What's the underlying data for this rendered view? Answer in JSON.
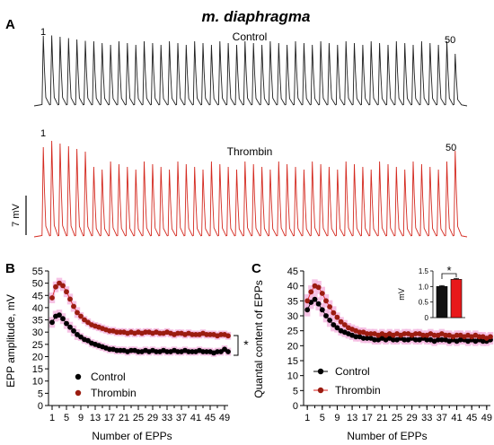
{
  "figure": {
    "title": "m. diaphragma",
    "panel_labels": {
      "a": "A",
      "b": "B",
      "c": "C"
    }
  },
  "colors": {
    "control": "#000000",
    "thrombin": "#d81f1f",
    "thrombin_marker": "#9b1c10",
    "error_shade": "#f5b8e0",
    "trace_control": "#202020",
    "trace_thrombin": "#d42a20",
    "bar_control": "#111111",
    "bar_thrombin": "#e8191b"
  },
  "chart_data": [
    {
      "type": "trace",
      "panel": "A",
      "series": [
        {
          "name": "Control",
          "first_label": "1",
          "last_label": "50",
          "n_pulses": 50
        },
        {
          "name": "Thrombin",
          "first_label": "1",
          "last_label": "50",
          "n_pulses": 50
        }
      ],
      "scale_bar": {
        "label": "7 mV"
      }
    },
    {
      "type": "scatter",
      "panel": "B",
      "xlabel": "Number of EPPs",
      "ylabel": "EPP amplitude, mV",
      "xlim": [
        0,
        50
      ],
      "ylim": [
        0,
        55
      ],
      "xticks": [
        1,
        5,
        9,
        13,
        17,
        21,
        25,
        29,
        33,
        37,
        41,
        45,
        49
      ],
      "yticks": [
        0,
        5,
        10,
        15,
        20,
        25,
        30,
        35,
        40,
        45,
        50,
        55
      ],
      "legend_position": "bottom-left",
      "significance": "*",
      "series": [
        {
          "name": "Control",
          "values": [
            34,
            36.5,
            37,
            35.5,
            33.5,
            32,
            30.5,
            29,
            28,
            27,
            26.5,
            25.5,
            25,
            24.5,
            24,
            23.5,
            23,
            23,
            22.5,
            22.5,
            22.5,
            22,
            22.5,
            22.5,
            22,
            22,
            22.5,
            22,
            22.5,
            22,
            22,
            22.5,
            22,
            22,
            22.5,
            22,
            22,
            22.5,
            22,
            22,
            22,
            22.5,
            22,
            22,
            22,
            21.5,
            22,
            22,
            23,
            22
          ]
        },
        {
          "name": "Thrombin",
          "values": [
            44,
            48.5,
            50,
            49,
            46.5,
            43.5,
            40.5,
            38,
            36.5,
            35,
            34,
            33,
            32.5,
            32,
            31.5,
            31,
            30.5,
            30.5,
            30,
            30,
            30,
            29.5,
            30,
            29.5,
            30,
            29.5,
            30,
            30,
            29.5,
            30,
            29.5,
            29.5,
            30,
            29.5,
            29,
            29.5,
            29.5,
            29,
            29.5,
            29,
            29,
            29,
            29.5,
            29,
            29,
            29,
            28.5,
            29,
            29,
            28.5
          ]
        }
      ]
    },
    {
      "type": "scatter",
      "panel": "C",
      "xlabel": "Number of EPPs",
      "ylabel": "Quantal content of EPPs",
      "xlim": [
        0,
        50
      ],
      "ylim": [
        0,
        45
      ],
      "xticks": [
        1,
        5,
        9,
        13,
        17,
        21,
        25,
        29,
        33,
        37,
        41,
        45,
        49
      ],
      "yticks": [
        0,
        5,
        10,
        15,
        20,
        25,
        30,
        35,
        40,
        45
      ],
      "legend_position": "bottom-left",
      "series": [
        {
          "name": "Control",
          "values": [
            32,
            34.5,
            35.5,
            34,
            32,
            30,
            28.5,
            27,
            26,
            25,
            24.5,
            24,
            23.5,
            23,
            23,
            22.5,
            22.5,
            22.5,
            22,
            22,
            22.5,
            22,
            22.5,
            22,
            22,
            22.5,
            22,
            22,
            22.5,
            22,
            22,
            22.5,
            22,
            22,
            21.5,
            22,
            22,
            22,
            21.5,
            22,
            21.5,
            22,
            22,
            21.5,
            22,
            21.5,
            22,
            21.5,
            21.5,
            22
          ]
        },
        {
          "name": "Thrombin",
          "values": [
            35,
            38,
            40,
            39.5,
            37.5,
            35,
            33,
            31,
            29.5,
            28,
            27,
            26,
            25.5,
            25,
            24.5,
            24.5,
            24,
            24,
            24,
            23.5,
            24,
            23.5,
            24,
            23.5,
            24,
            23.5,
            24,
            24,
            23.5,
            24,
            24,
            23.5,
            23.5,
            24,
            23.5,
            23.5,
            24,
            23.5,
            23.5,
            23,
            23.5,
            23.5,
            23,
            23.5,
            23,
            23.5,
            23,
            23,
            22.5,
            23
          ]
        }
      ],
      "inset": {
        "type": "bar",
        "ylabel": "mV",
        "ylim": [
          0,
          1.5
        ],
        "yticks": [
          "0",
          "0.5",
          "1.0",
          "1.5"
        ],
        "significance": "*",
        "values": [
          1.0,
          1.23
        ],
        "errors": [
          0.03,
          0.03
        ]
      }
    }
  ]
}
